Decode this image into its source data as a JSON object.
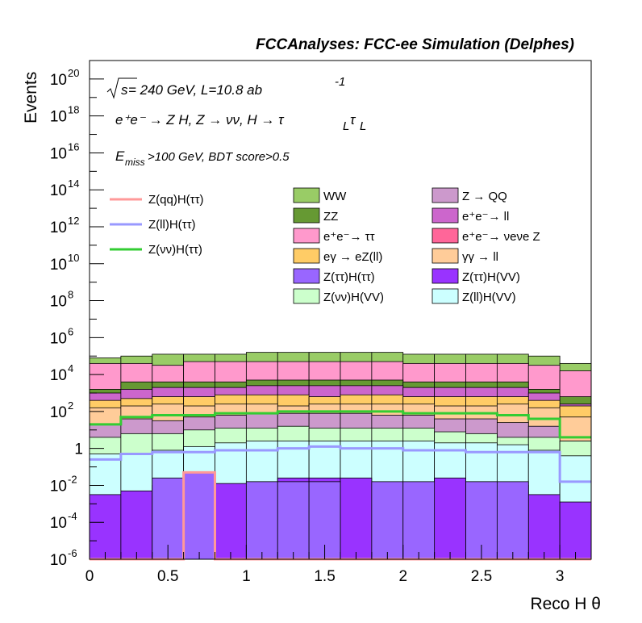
{
  "chart_data": {
    "type": "area",
    "title": "FCCAnalyses: FCC-ee Simulation (Delphes)",
    "xlabel": "Reco H θ",
    "ylabel": "Events",
    "xlim": [
      0,
      3.2
    ],
    "ylim_log10": [
      -6,
      21
    ],
    "yscale": "log",
    "x_ticks": [
      "0",
      "0.5",
      "1",
      "1.5",
      "2",
      "2.5",
      "3"
    ],
    "y_ticks": [
      {
        "base": "10",
        "exp": "20",
        "log": 20
      },
      {
        "base": "10",
        "exp": "18",
        "log": 18
      },
      {
        "base": "10",
        "exp": "16",
        "log": 16
      },
      {
        "base": "10",
        "exp": "14",
        "log": 14
      },
      {
        "base": "10",
        "exp": "12",
        "log": 12
      },
      {
        "base": "10",
        "exp": "10",
        "log": 10
      },
      {
        "base": "10",
        "exp": "8",
        "log": 8
      },
      {
        "base": "10",
        "exp": "6",
        "log": 6
      },
      {
        "base": "10",
        "exp": "4",
        "log": 4
      },
      {
        "base": "10",
        "exp": "2",
        "log": 2
      },
      {
        "base": "1",
        "exp": "",
        "log": 0
      },
      {
        "base": "10",
        "exp": "-2",
        "log": -2
      },
      {
        "base": "10",
        "exp": "-4",
        "log": -4
      },
      {
        "base": "10",
        "exp": "-6",
        "log": -6
      }
    ],
    "annotations": {
      "line1_sqrt": "s",
      "line1_rest": " = 240 GeV, L=10.8 ab",
      "line1_exp": "-1",
      "line2": "e⁺e⁻ → Z H, Z  → νν, H  → τₗτₗ",
      "line2_main": "e⁺e⁻ → Z H, Z  → νν, H  → τ",
      "line3_E": "E",
      "line3_sub": "miss",
      "line3_rest": ">100 GeV, BDT score>0.5"
    },
    "x_edges": [
      0,
      0.2,
      0.4,
      0.6,
      0.8,
      1.0,
      1.2,
      1.4,
      1.6,
      1.8,
      2.0,
      2.2,
      2.4,
      2.6,
      2.8,
      3.0,
      3.2
    ],
    "stack_order_bottom_to_top": [
      "Z(ττ)H(VV)",
      "Z(ll)H(VV)",
      "Z(νν)H(VV)",
      "Z → QQ",
      "γγ → ll",
      "eγ → eZ(ll)",
      "e⁺e⁻→ ll",
      "ZZ",
      "e⁺e⁻→ ττ",
      "WW"
    ],
    "stack_log10_cumulative": {
      "Z(ττ)H(VV)": [
        -2.5,
        -2.3,
        -2.0,
        -2.0,
        -1.9,
        -1.8,
        -1.6,
        -1.6,
        -1.6,
        -1.9,
        -1.9,
        -1.6,
        -1.8,
        -2.0,
        -2.5,
        -2.9
      ],
      "Z(ll)H(VV)": [
        -0.3,
        -0.3,
        -0.1,
        0.1,
        0.3,
        0.4,
        0.4,
        0.4,
        0.4,
        0.4,
        0.4,
        0.3,
        0.3,
        0.2,
        -0.1,
        -0.4
      ],
      "Z(νν)H(VV)": [
        0.6,
        0.8,
        0.8,
        1.0,
        1.1,
        1.1,
        1.2,
        1.1,
        1.1,
        1.1,
        1.1,
        0.9,
        0.8,
        0.6,
        0.6,
        0.4
      ],
      "Z → QQ": [
        1.3,
        1.6,
        1.5,
        1.7,
        1.8,
        1.9,
        1.9,
        1.9,
        1.9,
        1.8,
        1.8,
        1.6,
        1.6,
        1.4,
        1.2,
        0.4
      ],
      "γγ → ll": [
        2.2,
        2.3,
        2.4,
        2.3,
        2.4,
        2.4,
        2.3,
        2.4,
        2.4,
        2.4,
        2.4,
        2.3,
        2.3,
        2.4,
        2.2,
        1.7
      ],
      "eγ → eZ(ll)": [
        2.6,
        2.7,
        2.8,
        2.8,
        2.9,
        2.9,
        2.9,
        2.8,
        2.9,
        2.9,
        2.8,
        2.8,
        2.8,
        2.8,
        2.6,
        2.3
      ],
      "e⁺e⁻→ ll": [
        3.0,
        3.2,
        3.3,
        3.3,
        3.3,
        3.4,
        3.4,
        3.4,
        3.4,
        3.4,
        3.3,
        3.3,
        3.3,
        3.3,
        3.0,
        2.4
      ],
      "ZZ": [
        3.2,
        3.6,
        3.6,
        3.6,
        3.6,
        3.7,
        3.7,
        3.7,
        3.7,
        3.7,
        3.6,
        3.6,
        3.6,
        3.6,
        3.2,
        2.8
      ],
      "e⁺e⁻→ ττ": [
        4.6,
        4.6,
        4.5,
        4.7,
        4.7,
        4.7,
        4.7,
        4.7,
        4.7,
        4.7,
        4.6,
        4.6,
        4.6,
        4.6,
        4.5,
        4.2
      ],
      "WW": [
        4.9,
        5.0,
        5.1,
        5.1,
        5.1,
        5.2,
        5.2,
        5.2,
        5.2,
        5.2,
        5.1,
        5.1,
        5.1,
        5.1,
        5.0,
        4.6
      ]
    },
    "overlay_lines_log10": {
      "Z(qq)H(ττ)": [
        -6,
        -6,
        -6,
        -1.3,
        -6,
        -6,
        -6,
        -6,
        -6,
        -6,
        -6,
        -6,
        -6,
        -6,
        -6,
        -6
      ],
      "Z(ll)H(ττ)": [
        -0.6,
        -0.3,
        -0.2,
        -0.2,
        -0.1,
        -0.1,
        0.0,
        0.1,
        0.0,
        0.0,
        -0.1,
        -0.1,
        -0.2,
        -0.2,
        -0.2,
        -1.8
      ],
      "Z(νν)H(ττ)": [
        1.3,
        1.7,
        1.8,
        1.8,
        1.9,
        1.9,
        2.0,
        2.0,
        2.0,
        2.0,
        1.9,
        1.9,
        1.9,
        1.8,
        1.6,
        0.6
      ]
    },
    "legend_lines": [
      {
        "name": "Z(qq)H(ττ)",
        "color": "#ff9999"
      },
      {
        "name": "Z(ll)H(ττ)",
        "color": "#9999ff"
      },
      {
        "name": "Z(νν)H(ττ)",
        "color": "#33cc33"
      }
    ],
    "legend_fills": [
      {
        "name": "WW",
        "color": "#99cc66"
      },
      {
        "name": "Z → QQ",
        "color": "#cc99cc"
      },
      {
        "name": "ZZ",
        "color": "#669933"
      },
      {
        "name": "e⁺e⁻→ ll",
        "color": "#cc66cc"
      },
      {
        "name": "e⁺e⁻→ ττ",
        "color": "#ff99cc"
      },
      {
        "name": "e⁺e⁻→ νeνe Z",
        "color": "#ff6699"
      },
      {
        "name": "eγ → eZ(ll)",
        "color": "#ffcc66"
      },
      {
        "name": "γγ → ll",
        "color": "#ffcc99"
      },
      {
        "name": "Z(ττ)H(ττ)",
        "color": "#9966ff"
      },
      {
        "name": "Z(ττ)H(VV)",
        "color": "#9933ff"
      },
      {
        "name": "Z(νν)H(VV)",
        "color": "#ccffcc"
      },
      {
        "name": "Z(ll)H(VV)",
        "color": "#ccffff"
      }
    ],
    "ztautau_htautau_bins_log10": [
      -6,
      -6,
      -1.6,
      -1.3,
      -6,
      -1.8,
      -1.8,
      -1.8,
      -6,
      -1.8,
      -1.8,
      -6,
      -1.8,
      -1.8,
      -6,
      -6
    ]
  }
}
